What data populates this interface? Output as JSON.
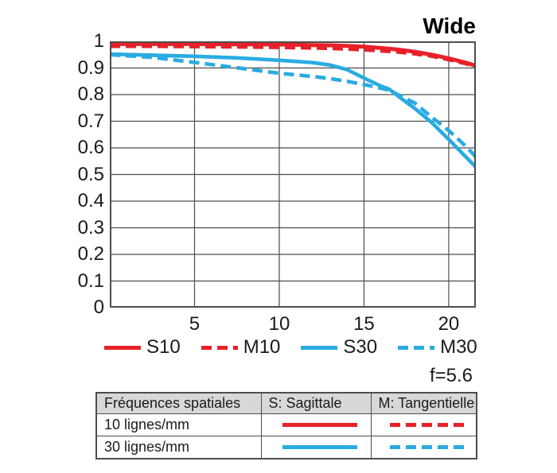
{
  "header": {
    "title": "Wide",
    "aperture": "f=5.6"
  },
  "colors": {
    "red": "#e8202a",
    "blue": "#29abe2",
    "grid": "#4d4d4d",
    "text": "#1a1a1a",
    "table_header_bg": "#d8d8d8"
  },
  "chart_data": {
    "type": "line",
    "title": "Wide",
    "xlabel": "",
    "ylabel": "",
    "xlim": [
      0,
      21.6
    ],
    "ylim": [
      0,
      1
    ],
    "x_ticks": [
      5,
      10,
      15,
      20
    ],
    "y_ticks": [
      0,
      0.1,
      0.2,
      0.3,
      0.4,
      0.5,
      0.6,
      0.7,
      0.8,
      0.9,
      1
    ],
    "y_tick_labels": [
      "0",
      "0.1",
      "0.2",
      "0.3",
      "0.4",
      "0.5",
      "0.6",
      "0.7",
      "0.8",
      "0.9",
      "1"
    ],
    "grid": true,
    "legend_position": "below",
    "x": [
      0,
      2.5,
      5,
      7.5,
      10,
      12,
      13,
      14,
      15,
      16,
      16.5,
      17,
      18,
      19,
      20,
      21,
      21.6
    ],
    "series": [
      {
        "name": "S10",
        "color_key": "red",
        "style": "solid",
        "values": [
          0.99,
          0.99,
          0.99,
          0.989,
          0.988,
          0.986,
          0.985,
          0.983,
          0.98,
          0.975,
          0.972,
          0.969,
          0.961,
          0.95,
          0.936,
          0.92,
          0.908
        ]
      },
      {
        "name": "M10",
        "color_key": "red",
        "style": "dashed",
        "values": [
          0.982,
          0.982,
          0.981,
          0.98,
          0.978,
          0.976,
          0.974,
          0.972,
          0.969,
          0.965,
          0.963,
          0.961,
          0.954,
          0.945,
          0.932,
          0.917,
          0.905
        ]
      },
      {
        "name": "S30",
        "color_key": "blue",
        "style": "solid",
        "values": [
          0.952,
          0.948,
          0.944,
          0.938,
          0.929,
          0.92,
          0.911,
          0.894,
          0.862,
          0.832,
          0.82,
          0.795,
          0.748,
          0.695,
          0.632,
          0.567,
          0.528
        ]
      },
      {
        "name": "M30",
        "color_key": "blue",
        "style": "dashed",
        "values": [
          0.95,
          0.94,
          0.921,
          0.901,
          0.88,
          0.868,
          0.86,
          0.85,
          0.838,
          0.824,
          0.816,
          0.8,
          0.768,
          0.715,
          0.665,
          0.607,
          0.566
        ]
      }
    ]
  },
  "table": {
    "headers": [
      "Fréquences spatiales",
      "S: Sagittale",
      "M: Tangentielle"
    ],
    "rows": [
      {
        "label": "10 lignes/mm"
      },
      {
        "label": "30 lignes/mm"
      }
    ]
  }
}
